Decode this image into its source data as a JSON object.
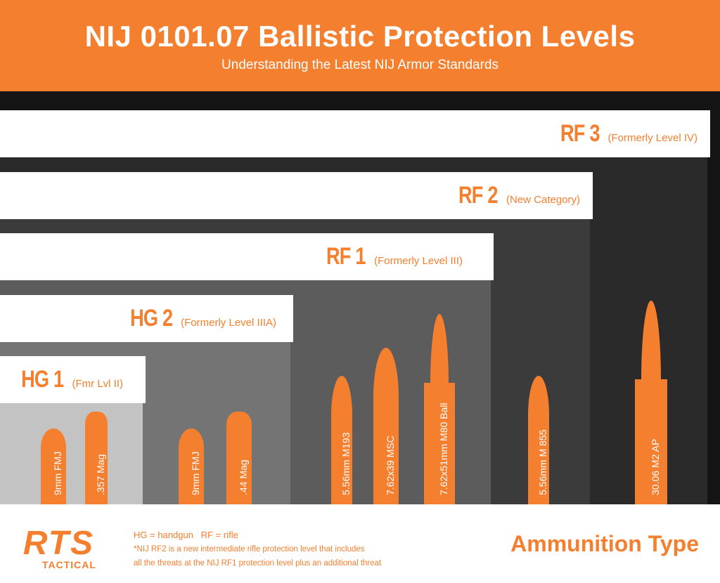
{
  "header": {
    "title": "NIJ 0101.07 Ballistic Protection Levels",
    "subtitle": "Understanding the Latest NIJ Armor Standards"
  },
  "levels": [
    {
      "name": "RF 3",
      "note": "(Formerly Level IV)",
      "body_color": "#2a2a2a"
    },
    {
      "name": "RF 2",
      "note": "(New Category)",
      "body_color": "#3b3b3b"
    },
    {
      "name": "RF 1",
      "note": "(Formerly Level III)",
      "body_color": "#5c5c5c"
    },
    {
      "name": "HG 2",
      "note": "(Formerly Level IIIA)",
      "body_color": "#747474"
    },
    {
      "name": "HG 1",
      "note": "(Fmr Lvl II)",
      "body_color": "#c3c3c3"
    }
  ],
  "ammo": [
    "9mm FMJ",
    ".357 Mag",
    "9mm FMJ",
    ".44 Mag",
    "5.56mm M193",
    "7.62x39 MSC",
    "7.62x51mm M80 Ball",
    "5.56mm M 855",
    "30.06 M2 AP"
  ],
  "footer": {
    "logo_main": "RTS",
    "logo_sub": "TACTICAL",
    "legend": "HG = handgun   RF = rifle",
    "note_line1": "*NIJ RF2 is a new intermediate rifle protection level that includes",
    "note_line2": "all the threats at the NIJ RF1 protection level plus an additional threat",
    "ammo_type": "Ammunition Type"
  },
  "colors": {
    "accent": "#f47f2f",
    "frame": "#141414"
  }
}
